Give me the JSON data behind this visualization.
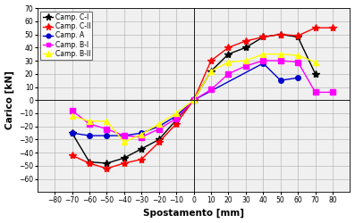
{
  "title": "",
  "xlabel": "Spostamento [mm]",
  "ylabel": "Carico [kN]",
  "xlim": [
    -90,
    90
  ],
  "ylim": [
    -70,
    70
  ],
  "xticks": [
    -80,
    -70,
    -60,
    -50,
    -40,
    -30,
    -20,
    -10,
    0,
    10,
    20,
    30,
    40,
    50,
    60,
    70,
    80
  ],
  "yticks": [
    -60,
    -50,
    -40,
    -30,
    -20,
    -10,
    0,
    10,
    20,
    30,
    40,
    50,
    60,
    70
  ],
  "series": [
    {
      "label": "Camp. C-I",
      "color": "#000000",
      "marker": "*",
      "markersize": 6,
      "linewidth": 1.0,
      "x": [
        -70,
        -60,
        -50,
        -40,
        -30,
        -20,
        -10,
        0,
        10,
        20,
        30,
        40,
        50,
        60,
        70
      ],
      "y": [
        -25,
        -47,
        -48,
        -44,
        -37,
        -30,
        -15,
        0,
        22,
        35,
        40,
        48,
        50,
        48,
        20
      ]
    },
    {
      "label": "Camp. C-II",
      "color": "#ff0000",
      "marker": "*",
      "markersize": 6,
      "linewidth": 1.0,
      "x": [
        -70,
        -60,
        -50,
        -40,
        -30,
        -20,
        -10,
        0,
        10,
        20,
        30,
        40,
        50,
        60,
        70,
        80
      ],
      "y": [
        -42,
        -48,
        -52,
        -48,
        -45,
        -32,
        -18,
        0,
        30,
        40,
        45,
        48,
        50,
        49,
        55,
        55
      ]
    },
    {
      "label": "Camp. A",
      "color": "#0000cc",
      "marker": "o",
      "markersize": 4,
      "linewidth": 1.0,
      "x": [
        -70,
        -60,
        -50,
        -40,
        -30,
        -20,
        -10,
        0,
        40,
        50,
        60
      ],
      "y": [
        -25,
        -27,
        -27,
        -27,
        -25,
        -20,
        -12,
        0,
        28,
        15,
        17
      ]
    },
    {
      "label": "Camp. B-I",
      "color": "#ff00ff",
      "marker": "s",
      "markersize": 4,
      "linewidth": 1.0,
      "x": [
        -70,
        -60,
        -50,
        -40,
        -30,
        -20,
        -10,
        0,
        10,
        20,
        30,
        40,
        50,
        60,
        70,
        80
      ],
      "y": [
        -8,
        -18,
        -22,
        -27,
        -28,
        -22,
        -14,
        0,
        8,
        20,
        26,
        30,
        30,
        29,
        6,
        6
      ]
    },
    {
      "label": "Camp. B-II",
      "color": "#ffff00",
      "marker": "^",
      "markersize": 5,
      "linewidth": 1.0,
      "x": [
        -70,
        -60,
        -50,
        -40,
        -30,
        -20,
        -10,
        0,
        10,
        20,
        30,
        40,
        50,
        60,
        70
      ],
      "y": [
        -12,
        -16,
        -16,
        -32,
        -26,
        -18,
        -10,
        0,
        22,
        29,
        30,
        35,
        35,
        34,
        29
      ]
    }
  ],
  "legend_loc": "upper left",
  "grid": true,
  "bg_color": "#f0f0f0",
  "fig_bg_color": "#ffffff"
}
